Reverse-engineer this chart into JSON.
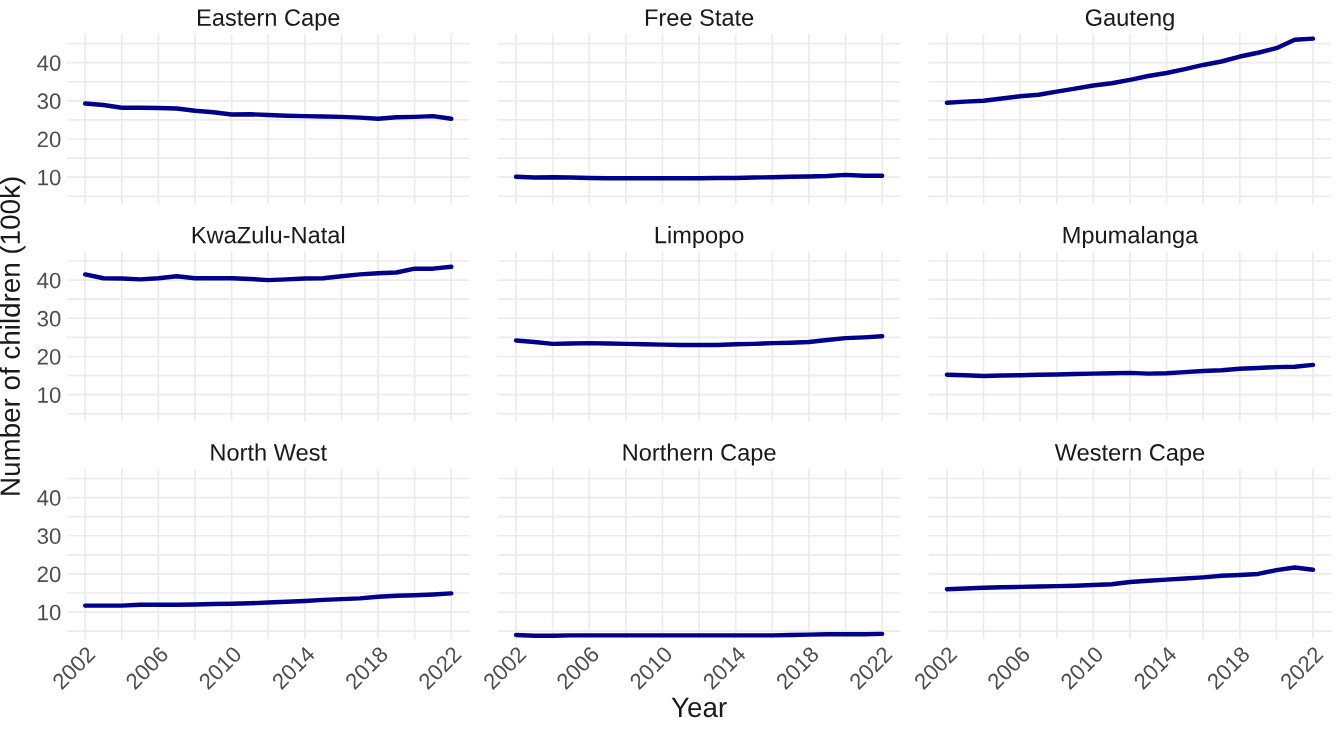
{
  "chart_data": [
    {
      "type": "line",
      "title": "Eastern Cape",
      "x": [
        2002,
        2003,
        2004,
        2005,
        2006,
        2007,
        2008,
        2009,
        2010,
        2011,
        2012,
        2013,
        2014,
        2015,
        2016,
        2017,
        2018,
        2019,
        2020,
        2021,
        2022
      ],
      "series": [
        {
          "color": "#00008b",
          "values": [
            29.3,
            28.9,
            28.2,
            28.2,
            28.1,
            28.0,
            27.4,
            27.0,
            26.4,
            26.5,
            26.3,
            26.1,
            26.0,
            25.9,
            25.8,
            25.6,
            25.3,
            25.7,
            25.8,
            26.0,
            25.3
          ]
        }
      ],
      "xlim": [
        2001,
        2023
      ],
      "ylim": [
        3,
        47.5
      ],
      "xticks": [
        2002,
        {
          "value": 2004,
          "label": null
        },
        2006,
        {
          "value": 2008,
          "label": null
        },
        2010,
        {
          "value": 2012,
          "label": null
        },
        2014,
        {
          "value": 2016,
          "label": null
        },
        2018,
        {
          "value": 2020,
          "label": null
        },
        2022
      ],
      "yticks": [
        {
          "value": 5,
          "label": null
        },
        10,
        {
          "value": 15,
          "label": null
        },
        20,
        {
          "value": 25,
          "label": null
        },
        30,
        {
          "value": 35,
          "label": null
        },
        40,
        {
          "value": 45,
          "label": null
        }
      ],
      "tick_labels": "y",
      "grid": true
    },
    {
      "type": "line",
      "title": "Free State",
      "x": [
        2002,
        2003,
        2004,
        2005,
        2006,
        2007,
        2008,
        2009,
        2010,
        2011,
        2012,
        2013,
        2014,
        2015,
        2016,
        2017,
        2018,
        2019,
        2020,
        2021,
        2022
      ],
      "series": [
        {
          "color": "#00008b",
          "values": [
            10.1,
            9.9,
            10.0,
            9.9,
            9.8,
            9.7,
            9.7,
            9.7,
            9.7,
            9.7,
            9.7,
            9.8,
            9.8,
            9.9,
            10.0,
            10.1,
            10.2,
            10.3,
            10.6,
            10.4,
            10.4
          ]
        }
      ],
      "xlim": [
        2001,
        2023
      ],
      "ylim": [
        3,
        47.5
      ],
      "xticks": [
        2002,
        {
          "value": 2004,
          "label": null
        },
        2006,
        {
          "value": 2008,
          "label": null
        },
        2010,
        {
          "value": 2012,
          "label": null
        },
        2014,
        {
          "value": 2016,
          "label": null
        },
        2018,
        {
          "value": 2020,
          "label": null
        },
        2022
      ],
      "yticks": [
        {
          "value": 5,
          "label": null
        },
        10,
        {
          "value": 15,
          "label": null
        },
        20,
        {
          "value": 25,
          "label": null
        },
        30,
        {
          "value": 35,
          "label": null
        },
        40,
        {
          "value": 45,
          "label": null
        }
      ],
      "tick_labels": false,
      "grid": true
    },
    {
      "type": "line",
      "title": "Gauteng",
      "x": [
        2002,
        2003,
        2004,
        2005,
        2006,
        2007,
        2008,
        2009,
        2010,
        2011,
        2012,
        2013,
        2014,
        2015,
        2016,
        2017,
        2018,
        2019,
        2020,
        2021,
        2022
      ],
      "series": [
        {
          "color": "#00008b",
          "values": [
            29.5,
            29.8,
            30.0,
            30.6,
            31.2,
            31.6,
            32.4,
            33.2,
            34.0,
            34.6,
            35.5,
            36.5,
            37.3,
            38.3,
            39.4,
            40.3,
            41.6,
            42.6,
            43.8,
            46.0,
            46.3
          ]
        }
      ],
      "xlim": [
        2001,
        2023
      ],
      "ylim": [
        3,
        47.5
      ],
      "xticks": [
        2002,
        {
          "value": 2004,
          "label": null
        },
        2006,
        {
          "value": 2008,
          "label": null
        },
        2010,
        {
          "value": 2012,
          "label": null
        },
        2014,
        {
          "value": 2016,
          "label": null
        },
        2018,
        {
          "value": 2020,
          "label": null
        },
        2022
      ],
      "yticks": [
        {
          "value": 5,
          "label": null
        },
        10,
        {
          "value": 15,
          "label": null
        },
        20,
        {
          "value": 25,
          "label": null
        },
        30,
        {
          "value": 35,
          "label": null
        },
        40,
        {
          "value": 45,
          "label": null
        }
      ],
      "tick_labels": false,
      "grid": true
    },
    {
      "type": "line",
      "title": "KwaZulu-Natal",
      "ylabel": "Number of children (100k)",
      "x": [
        2002,
        2003,
        2004,
        2005,
        2006,
        2007,
        2008,
        2009,
        2010,
        2011,
        2012,
        2013,
        2014,
        2015,
        2016,
        2017,
        2018,
        2019,
        2020,
        2021,
        2022
      ],
      "series": [
        {
          "color": "#00008b",
          "values": [
            41.5,
            40.5,
            40.4,
            40.2,
            40.5,
            41.0,
            40.5,
            40.5,
            40.5,
            40.3,
            40.0,
            40.2,
            40.4,
            40.5,
            41.0,
            41.5,
            41.8,
            42.0,
            43.0,
            43.0,
            43.5
          ]
        }
      ],
      "xlim": [
        2001,
        2023
      ],
      "ylim": [
        3,
        47.5
      ],
      "xticks": [
        2002,
        {
          "value": 2004,
          "label": null
        },
        2006,
        {
          "value": 2008,
          "label": null
        },
        2010,
        {
          "value": 2012,
          "label": null
        },
        2014,
        {
          "value": 2016,
          "label": null
        },
        2018,
        {
          "value": 2020,
          "label": null
        },
        2022
      ],
      "yticks": [
        {
          "value": 5,
          "label": null
        },
        10,
        {
          "value": 15,
          "label": null
        },
        20,
        {
          "value": 25,
          "label": null
        },
        30,
        {
          "value": 35,
          "label": null
        },
        40,
        {
          "value": 45,
          "label": null
        }
      ],
      "tick_labels": "y",
      "grid": true
    },
    {
      "type": "line",
      "title": "Limpopo",
      "x": [
        2002,
        2003,
        2004,
        2005,
        2006,
        2007,
        2008,
        2009,
        2010,
        2011,
        2012,
        2013,
        2014,
        2015,
        2016,
        2017,
        2018,
        2019,
        2020,
        2021,
        2022
      ],
      "series": [
        {
          "color": "#00008b",
          "values": [
            24.2,
            23.8,
            23.3,
            23.4,
            23.5,
            23.4,
            23.3,
            23.2,
            23.1,
            23.0,
            23.0,
            23.0,
            23.2,
            23.3,
            23.5,
            23.6,
            23.8,
            24.3,
            24.8,
            25.0,
            25.3
          ]
        }
      ],
      "xlim": [
        2001,
        2023
      ],
      "ylim": [
        3,
        47.5
      ],
      "xticks": [
        2002,
        {
          "value": 2004,
          "label": null
        },
        2006,
        {
          "value": 2008,
          "label": null
        },
        2010,
        {
          "value": 2012,
          "label": null
        },
        2014,
        {
          "value": 2016,
          "label": null
        },
        2018,
        {
          "value": 2020,
          "label": null
        },
        2022
      ],
      "yticks": [
        {
          "value": 5,
          "label": null
        },
        10,
        {
          "value": 15,
          "label": null
        },
        20,
        {
          "value": 25,
          "label": null
        },
        30,
        {
          "value": 35,
          "label": null
        },
        40,
        {
          "value": 45,
          "label": null
        }
      ],
      "tick_labels": false,
      "grid": true
    },
    {
      "type": "line",
      "title": "Mpumalanga",
      "x": [
        2002,
        2003,
        2004,
        2005,
        2006,
        2007,
        2008,
        2009,
        2010,
        2011,
        2012,
        2013,
        2014,
        2015,
        2016,
        2017,
        2018,
        2019,
        2020,
        2021,
        2022
      ],
      "series": [
        {
          "color": "#00008b",
          "values": [
            15.2,
            15.1,
            14.9,
            15.0,
            15.1,
            15.2,
            15.3,
            15.4,
            15.5,
            15.6,
            15.7,
            15.5,
            15.6,
            15.9,
            16.2,
            16.4,
            16.8,
            17.0,
            17.2,
            17.3,
            17.8
          ]
        }
      ],
      "xlim": [
        2001,
        2023
      ],
      "ylim": [
        3,
        47.5
      ],
      "xticks": [
        2002,
        {
          "value": 2004,
          "label": null
        },
        2006,
        {
          "value": 2008,
          "label": null
        },
        2010,
        {
          "value": 2012,
          "label": null
        },
        2014,
        {
          "value": 2016,
          "label": null
        },
        2018,
        {
          "value": 2020,
          "label": null
        },
        2022
      ],
      "yticks": [
        {
          "value": 5,
          "label": null
        },
        10,
        {
          "value": 15,
          "label": null
        },
        20,
        {
          "value": 25,
          "label": null
        },
        30,
        {
          "value": 35,
          "label": null
        },
        40,
        {
          "value": 45,
          "label": null
        }
      ],
      "tick_labels": false,
      "grid": true
    },
    {
      "type": "line",
      "title": "North West",
      "x": [
        2002,
        2003,
        2004,
        2005,
        2006,
        2007,
        2008,
        2009,
        2010,
        2011,
        2012,
        2013,
        2014,
        2015,
        2016,
        2017,
        2018,
        2019,
        2020,
        2021,
        2022
      ],
      "series": [
        {
          "color": "#00008b",
          "values": [
            11.7,
            11.7,
            11.7,
            11.9,
            11.9,
            11.9,
            12.0,
            12.1,
            12.2,
            12.3,
            12.5,
            12.7,
            12.9,
            13.2,
            13.4,
            13.6,
            14.0,
            14.3,
            14.4,
            14.6,
            14.9
          ]
        }
      ],
      "xlim": [
        2001,
        2023
      ],
      "ylim": [
        3,
        47.5
      ],
      "xticks": [
        2002,
        {
          "value": 2004,
          "label": null
        },
        2006,
        {
          "value": 2008,
          "label": null
        },
        2010,
        {
          "value": 2012,
          "label": null
        },
        2014,
        {
          "value": 2016,
          "label": null
        },
        2018,
        {
          "value": 2020,
          "label": null
        },
        2022
      ],
      "yticks": [
        {
          "value": 5,
          "label": null
        },
        10,
        {
          "value": 15,
          "label": null
        },
        20,
        {
          "value": 25,
          "label": null
        },
        30,
        {
          "value": 35,
          "label": null
        },
        40,
        {
          "value": 45,
          "label": null
        }
      ],
      "grid": true
    },
    {
      "type": "line",
      "title": "Northern Cape",
      "xlabel": "Year",
      "x": [
        2002,
        2003,
        2004,
        2005,
        2006,
        2007,
        2008,
        2009,
        2010,
        2011,
        2012,
        2013,
        2014,
        2015,
        2016,
        2017,
        2018,
        2019,
        2020,
        2021,
        2022
      ],
      "series": [
        {
          "color": "#00008b",
          "values": [
            4.0,
            3.8,
            3.8,
            3.9,
            3.9,
            3.9,
            3.9,
            3.9,
            3.9,
            3.9,
            3.9,
            3.9,
            3.9,
            3.9,
            3.9,
            4.0,
            4.1,
            4.2,
            4.2,
            4.2,
            4.3
          ]
        }
      ],
      "xlim": [
        2001,
        2023
      ],
      "ylim": [
        3,
        47.5
      ],
      "xticks": [
        2002,
        {
          "value": 2004,
          "label": null
        },
        2006,
        {
          "value": 2008,
          "label": null
        },
        2010,
        {
          "value": 2012,
          "label": null
        },
        2014,
        {
          "value": 2016,
          "label": null
        },
        2018,
        {
          "value": 2020,
          "label": null
        },
        2022
      ],
      "yticks": [
        {
          "value": 5,
          "label": null
        },
        10,
        {
          "value": 15,
          "label": null
        },
        20,
        {
          "value": 25,
          "label": null
        },
        30,
        {
          "value": 35,
          "label": null
        },
        40,
        {
          "value": 45,
          "label": null
        }
      ],
      "tick_labels": "x",
      "grid": true
    },
    {
      "type": "line",
      "title": "Western Cape",
      "x": [
        2002,
        2003,
        2004,
        2005,
        2006,
        2007,
        2008,
        2009,
        2010,
        2011,
        2012,
        2013,
        2014,
        2015,
        2016,
        2017,
        2018,
        2019,
        2020,
        2021,
        2022
      ],
      "series": [
        {
          "color": "#00008b",
          "values": [
            16.0,
            16.2,
            16.4,
            16.5,
            16.6,
            16.7,
            16.8,
            16.9,
            17.1,
            17.3,
            17.9,
            18.2,
            18.5,
            18.8,
            19.1,
            19.5,
            19.7,
            20.0,
            21.0,
            21.7,
            21.1
          ]
        }
      ],
      "xlim": [
        2001,
        2023
      ],
      "ylim": [
        3,
        47.5
      ],
      "xticks": [
        2002,
        {
          "value": 2004,
          "label": null
        },
        2006,
        {
          "value": 2008,
          "label": null
        },
        2010,
        {
          "value": 2012,
          "label": null
        },
        2014,
        {
          "value": 2016,
          "label": null
        },
        2018,
        {
          "value": 2020,
          "label": null
        },
        2022
      ],
      "yticks": [
        {
          "value": 5,
          "label": null
        },
        10,
        {
          "value": 15,
          "label": null
        },
        20,
        {
          "value": 25,
          "label": null
        },
        30,
        {
          "value": 35,
          "label": null
        },
        40,
        {
          "value": 45,
          "label": null
        }
      ],
      "tick_labels": "x",
      "grid": true
    }
  ]
}
